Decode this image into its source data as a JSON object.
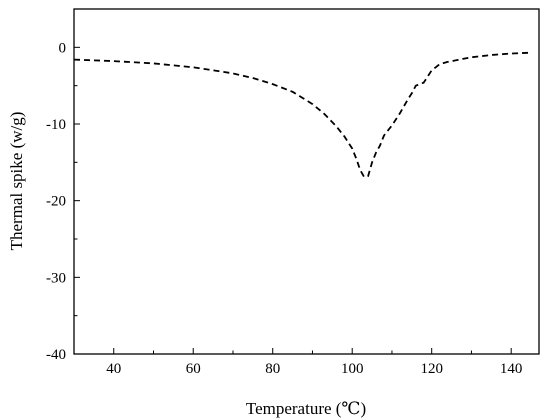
{
  "chart_data": {
    "type": "line",
    "title": "",
    "xlabel": "Temperature (℃)",
    "ylabel": "Thermal spike (w/g)",
    "xlim": [
      30,
      147
    ],
    "ylim": [
      -40,
      5
    ],
    "x_ticks": [
      40,
      60,
      80,
      100,
      120,
      140
    ],
    "y_ticks": [
      0,
      -10,
      -20,
      -30,
      -40
    ],
    "x_tick_labels": [
      "40",
      "60",
      "80",
      "100",
      "120",
      "140"
    ],
    "y_tick_labels": [
      "0",
      "-10",
      "-20",
      "-30",
      "-40"
    ],
    "grid": false,
    "legend": "none",
    "series": [
      {
        "line_style": "dashed",
        "color": "#000000",
        "x": [
          30,
          40,
          50,
          60,
          65,
          70,
          75,
          80,
          85,
          90,
          93,
          96,
          98,
          100,
          101,
          102,
          103,
          104,
          105,
          106,
          107,
          108,
          110,
          112,
          114,
          115,
          116,
          118,
          119,
          120,
          121,
          122,
          124,
          126,
          128,
          130,
          135,
          140,
          145
        ],
        "y": [
          -1.6,
          -1.8,
          -2.1,
          -2.6,
          -3.0,
          -3.4,
          -4.0,
          -4.8,
          -5.8,
          -7.4,
          -8.7,
          -10.3,
          -11.6,
          -13.2,
          -14.5,
          -16.0,
          -16.9,
          -16.8,
          -15.0,
          -13.7,
          -12.8,
          -11.5,
          -10.2,
          -8.6,
          -6.8,
          -6.0,
          -5.0,
          -4.6,
          -3.8,
          -3.0,
          -2.6,
          -2.2,
          -1.9,
          -1.7,
          -1.5,
          -1.3,
          -1.0,
          -0.8,
          -0.7
        ]
      }
    ]
  }
}
